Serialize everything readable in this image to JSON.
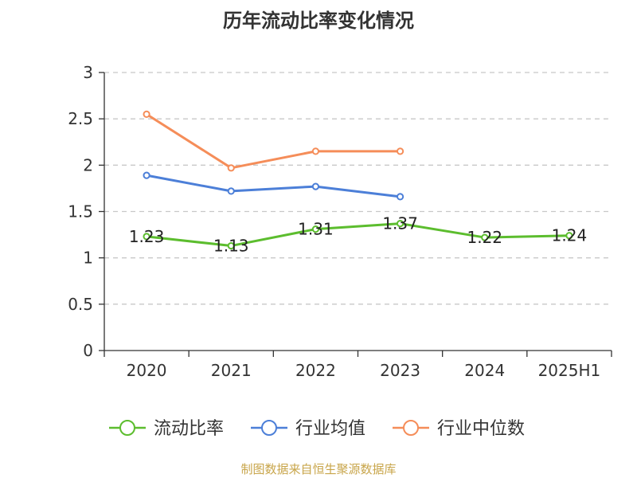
{
  "title": "历年流动比率变化情况",
  "source": "制图数据来自恒生聚源数据库",
  "chart_data": {
    "type": "line",
    "categories": [
      "2020",
      "2021",
      "2022",
      "2023",
      "2024",
      "2025H1"
    ],
    "ylim": [
      0,
      3
    ],
    "yticks": [
      0,
      0.5,
      1,
      1.5,
      2,
      2.5,
      3
    ],
    "ytick_labels": [
      "0",
      "0.5",
      "1",
      "1.5",
      "2",
      "2.5",
      "3"
    ],
    "grid": true,
    "legend_position": "bottom",
    "series": [
      {
        "name": "流动比率",
        "color": "#5cbd2e",
        "values": [
          1.23,
          1.13,
          1.31,
          1.37,
          1.22,
          1.24
        ],
        "labels": [
          "1.23",
          "1.13",
          "1.31",
          "1.37",
          "1.22",
          "1.24"
        ]
      },
      {
        "name": "行业均值",
        "color": "#4c7fd8",
        "values": [
          1.89,
          1.72,
          1.77,
          1.66,
          null,
          null
        ]
      },
      {
        "name": "行业中位数",
        "color": "#f58d59",
        "values": [
          2.55,
          1.97,
          2.15,
          2.15,
          null,
          null
        ]
      }
    ]
  }
}
